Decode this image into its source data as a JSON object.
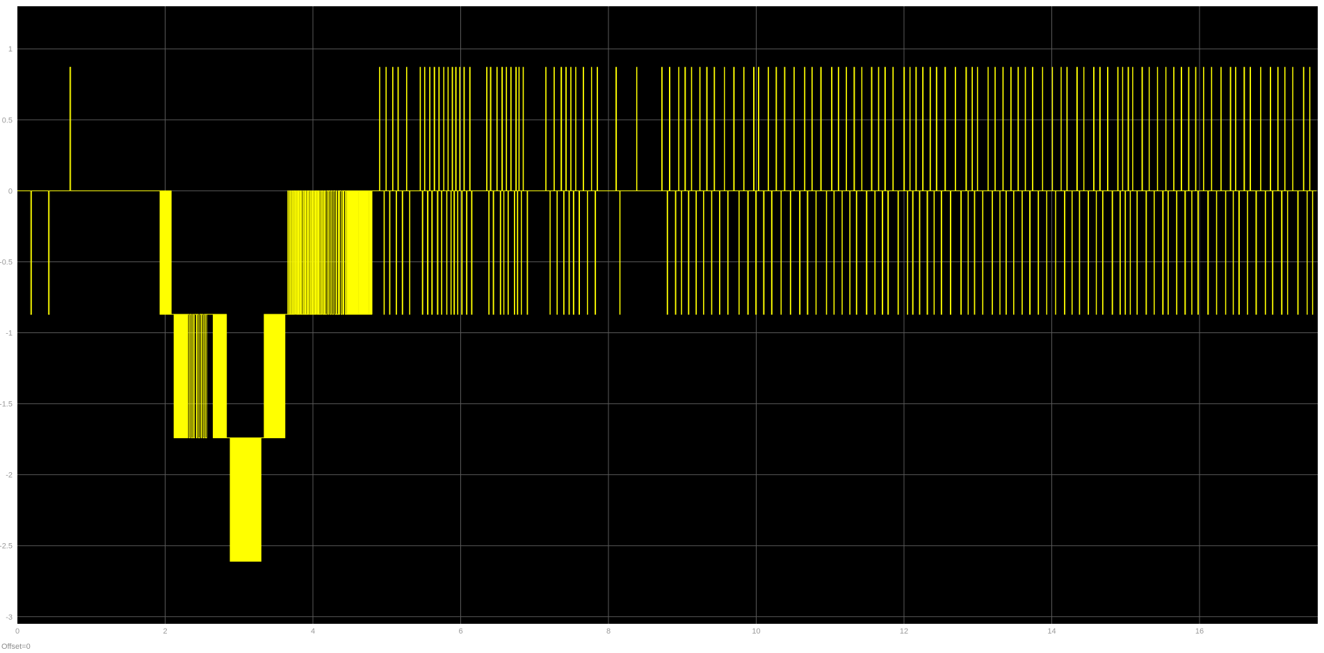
{
  "footer": {
    "offset_label": "Offset=0"
  },
  "chart_data": {
    "type": "line",
    "title": "",
    "xlabel": "",
    "ylabel": "",
    "xlim": [
      0,
      17.6
    ],
    "ylim": [
      -3.05,
      1.3
    ],
    "grid": true,
    "background_color": "#000000",
    "line_color": "#ffff00",
    "grid_color": "#5a5a5a",
    "x_ticks": [
      0,
      2,
      4,
      6,
      8,
      10,
      12,
      14,
      16
    ],
    "x_tick_labels": [
      "0",
      "2",
      "4",
      "6",
      "8",
      "10",
      "12",
      "14",
      "16"
    ],
    "y_ticks": [
      1,
      0.5,
      0,
      -0.5,
      -1,
      -1.5,
      -2,
      -2.5,
      -3
    ],
    "y_tick_labels": [
      "1",
      "0.5",
      "0",
      "-0.5",
      "-1",
      "-1.5",
      "-2",
      "-2.5",
      "-3"
    ],
    "series": [
      {
        "levels": [
          0.87,
          0,
          -0.87,
          -1.74,
          -2.61
        ],
        "segments": [
          {
            "x_start": 0.0,
            "x_end": 1.93,
            "base": 0,
            "mode": "pulses",
            "target": -0.87,
            "pulses": [
              0.18,
              0.42
            ]
          },
          {
            "x_start": 0.7,
            "x_end": 0.73,
            "base": 0,
            "mode": "pulses",
            "target": 0.87,
            "pulses": [
              0.71
            ]
          },
          {
            "x_start": 1.93,
            "x_end": 2.08,
            "base": 0,
            "mode": "dense",
            "target": -0.87,
            "spacing": 0.006
          },
          {
            "x_start": 2.08,
            "x_end": 2.12,
            "base": -0.87,
            "mode": "flat"
          },
          {
            "x_start": 2.12,
            "x_end": 2.3,
            "base": -0.87,
            "mode": "dense",
            "target": -1.74,
            "spacing": 0.006
          },
          {
            "x_start": 2.3,
            "x_end": 2.55,
            "base": -0.87,
            "mode": "sparse",
            "target": -1.74,
            "spacing": 0.02
          },
          {
            "x_start": 2.55,
            "x_end": 2.65,
            "base": -0.87,
            "mode": "flat"
          },
          {
            "x_start": 2.65,
            "x_end": 2.83,
            "base": -0.87,
            "mode": "dense",
            "target": -1.74,
            "spacing": 0.006
          },
          {
            "x_start": 2.83,
            "x_end": 2.88,
            "base": -1.74,
            "mode": "flat"
          },
          {
            "x_start": 2.88,
            "x_end": 3.3,
            "base": -1.74,
            "mode": "dense",
            "target": -2.61,
            "spacing": 0.007
          },
          {
            "x_start": 3.3,
            "x_end": 3.34,
            "base": -1.74,
            "mode": "flat"
          },
          {
            "x_start": 3.34,
            "x_end": 3.62,
            "base": -1.74,
            "mode": "dense",
            "target": -0.87,
            "spacing": 0.006
          },
          {
            "x_start": 3.62,
            "x_end": 3.66,
            "base": -0.87,
            "mode": "flat"
          },
          {
            "x_start": 3.66,
            "x_end": 4.15,
            "base": -0.87,
            "mode": "sparse",
            "target": 0,
            "spacing": 0.012
          },
          {
            "x_start": 4.15,
            "x_end": 4.45,
            "base": -0.87,
            "mode": "sparse",
            "target": 0,
            "spacing": 0.02
          },
          {
            "x_start": 4.45,
            "x_end": 4.8,
            "base": -0.87,
            "mode": "dense",
            "target": 0,
            "spacing": 0.008
          },
          {
            "x_start": 4.8,
            "x_end": 4.9,
            "base": 0,
            "mode": "flat"
          },
          {
            "x_start": 4.9,
            "x_end": 5.35,
            "base": 0,
            "mode": "bipolar",
            "spacing": 0.045
          },
          {
            "x_start": 5.45,
            "x_end": 6.15,
            "base": 0,
            "mode": "bipolar",
            "spacing": 0.032
          },
          {
            "x_start": 6.35,
            "x_end": 6.95,
            "base": 0,
            "mode": "bipolar",
            "spacing": 0.04
          },
          {
            "x_start": 7.15,
            "x_end": 7.85,
            "base": 0,
            "mode": "bipolar",
            "spacing": 0.045
          },
          {
            "x_start": 8.1,
            "x_end": 8.2,
            "base": 0,
            "mode": "bipolar",
            "spacing": 0.05
          },
          {
            "x_start": 8.38,
            "x_end": 8.4,
            "base": 0,
            "mode": "bipolar",
            "spacing": 0.05
          },
          {
            "x_start": 8.72,
            "x_end": 17.58,
            "base": 0,
            "mode": "bipolar",
            "spacing": 0.058
          }
        ]
      }
    ]
  }
}
